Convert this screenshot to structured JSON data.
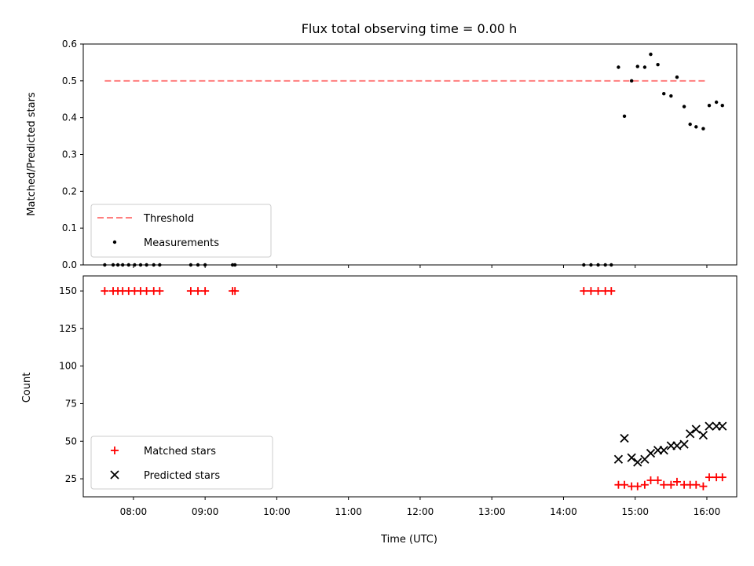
{
  "figure": {
    "title": "Flux total observing time = 0.00 h",
    "xlabel": "Time (UTC)"
  },
  "chart_data": [
    {
      "type": "scatter",
      "panel": "top",
      "ylabel": "Matched/Predicted stars",
      "xlim": [
        "07:18",
        "16:25"
      ],
      "ylim": [
        0,
        0.6
      ],
      "yticks": [
        0.0,
        0.1,
        0.2,
        0.3,
        0.4,
        0.5,
        0.6
      ],
      "ytick_labels": [
        "0.0",
        "0.1",
        "0.2",
        "0.3",
        "0.4",
        "0.5",
        "0.6"
      ],
      "legend_position": "lower-left",
      "threshold": {
        "name": "Threshold",
        "value": 0.5,
        "x_range": [
          "07:36",
          "16:00"
        ],
        "color": "#ff7f7f"
      },
      "series": [
        {
          "name": "Measurements",
          "color": "#000000",
          "points": [
            [
              "07:36",
              0.0
            ],
            [
              "07:43",
              0.0
            ],
            [
              "07:47",
              0.0
            ],
            [
              "07:51",
              0.0
            ],
            [
              "07:56",
              0.0
            ],
            [
              "08:01",
              0.0
            ],
            [
              "08:06",
              0.0
            ],
            [
              "08:11",
              0.0
            ],
            [
              "08:17",
              0.0
            ],
            [
              "08:22",
              0.0
            ],
            [
              "08:48",
              0.0
            ],
            [
              "08:54",
              0.0
            ],
            [
              "09:00",
              0.0
            ],
            [
              "09:23",
              0.0
            ],
            [
              "09:25",
              0.0
            ],
            [
              "14:17",
              0.0
            ],
            [
              "14:23",
              0.0
            ],
            [
              "14:29",
              0.0
            ],
            [
              "14:35",
              0.0
            ],
            [
              "14:40",
              0.0
            ],
            [
              "14:46",
              0.537
            ],
            [
              "14:51",
              0.404
            ],
            [
              "14:57",
              0.5
            ],
            [
              "15:02",
              0.539
            ],
            [
              "15:08",
              0.537
            ],
            [
              "15:13",
              0.572
            ],
            [
              "15:19",
              0.544
            ],
            [
              "15:24",
              0.465
            ],
            [
              "15:30",
              0.459
            ],
            [
              "15:35",
              0.51
            ],
            [
              "15:41",
              0.43
            ],
            [
              "15:46",
              0.382
            ],
            [
              "15:51",
              0.375
            ],
            [
              "15:57",
              0.37
            ],
            [
              "16:02",
              0.433
            ],
            [
              "16:08",
              0.442
            ],
            [
              "16:13",
              0.433
            ]
          ]
        }
      ]
    },
    {
      "type": "scatter",
      "panel": "bottom",
      "ylabel": "Count",
      "xlim": [
        "07:18",
        "16:25"
      ],
      "ylim": [
        13,
        160
      ],
      "yticks": [
        25,
        50,
        75,
        100,
        125,
        150
      ],
      "ytick_labels": [
        "25",
        "50",
        "75",
        "100",
        "125",
        "150"
      ],
      "xticks": [
        "08:00",
        "09:00",
        "10:00",
        "11:00",
        "12:00",
        "13:00",
        "14:00",
        "15:00",
        "16:00"
      ],
      "xtick_labels": [
        "08:00",
        "09:00",
        "10:00",
        "11:00",
        "12:00",
        "13:00",
        "14:00",
        "15:00",
        "16:00"
      ],
      "legend_position": "lower-left",
      "series": [
        {
          "name": "Matched stars",
          "marker": "plus",
          "color": "#ff0000",
          "points": [
            [
              "07:36",
              150
            ],
            [
              "07:43",
              150
            ],
            [
              "07:47",
              150
            ],
            [
              "07:51",
              150
            ],
            [
              "07:56",
              150
            ],
            [
              "08:01",
              150
            ],
            [
              "08:06",
              150
            ],
            [
              "08:11",
              150
            ],
            [
              "08:17",
              150
            ],
            [
              "08:22",
              150
            ],
            [
              "08:48",
              150
            ],
            [
              "08:54",
              150
            ],
            [
              "09:00",
              150
            ],
            [
              "09:23",
              150
            ],
            [
              "09:25",
              150
            ],
            [
              "14:17",
              150
            ],
            [
              "14:23",
              150
            ],
            [
              "14:29",
              150
            ],
            [
              "14:35",
              150
            ],
            [
              "14:40",
              150
            ],
            [
              "14:46",
              21
            ],
            [
              "14:51",
              21
            ],
            [
              "14:57",
              20
            ],
            [
              "15:02",
              20
            ],
            [
              "15:08",
              21
            ],
            [
              "15:13",
              24
            ],
            [
              "15:19",
              24
            ],
            [
              "15:24",
              21
            ],
            [
              "15:30",
              21
            ],
            [
              "15:35",
              23
            ],
            [
              "15:41",
              21
            ],
            [
              "15:46",
              21
            ],
            [
              "15:51",
              21
            ],
            [
              "15:57",
              20
            ],
            [
              "16:02",
              26
            ],
            [
              "16:08",
              26
            ],
            [
              "16:13",
              26
            ]
          ]
        },
        {
          "name": "Predicted stars",
          "marker": "x",
          "color": "#000000",
          "points": [
            [
              "14:46",
              38
            ],
            [
              "14:51",
              52
            ],
            [
              "14:57",
              39
            ],
            [
              "15:02",
              36
            ],
            [
              "15:08",
              38
            ],
            [
              "15:13",
              42
            ],
            [
              "15:19",
              44
            ],
            [
              "15:24",
              44
            ],
            [
              "15:30",
              47
            ],
            [
              "15:35",
              47
            ],
            [
              "15:41",
              48
            ],
            [
              "15:46",
              55
            ],
            [
              "15:51",
              58
            ],
            [
              "15:57",
              54
            ],
            [
              "16:02",
              60
            ],
            [
              "16:08",
              60
            ],
            [
              "16:13",
              60
            ]
          ]
        }
      ]
    }
  ]
}
